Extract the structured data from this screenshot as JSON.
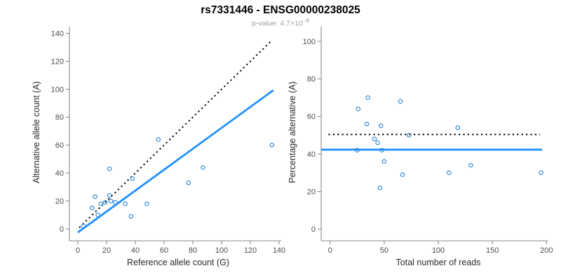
{
  "title": "rs7331446 - ENSG00000238025",
  "subtitle": {
    "text": "p-value: 4.7×10",
    "exponent": "−8"
  },
  "colors": {
    "line_blue": "#1E90FF",
    "point_blue": "#2F89D8",
    "reference_black": "#0a0a0a",
    "axis": "#8a8a8a",
    "tick_text": "#4d4d4d",
    "axis_label_text": "#2b2b2b",
    "title_text": "#000000",
    "subtitle_text": "#9e9e9e"
  },
  "chart_data": [
    {
      "type": "scatter",
      "name": "ref-vs-alt-count",
      "xlabel": "Reference allele count (G)",
      "ylabel": "Alternative allele count (A)",
      "xlim": [
        0,
        140
      ],
      "ylim": [
        0,
        140
      ],
      "xticks": [
        0,
        20,
        40,
        60,
        80,
        100,
        120,
        140
      ],
      "yticks": [
        0,
        20,
        40,
        60,
        80,
        100,
        120,
        140
      ],
      "grid": false,
      "legend": "none",
      "marker": "open-circle",
      "points": [
        [
          4,
          2
        ],
        [
          10,
          15
        ],
        [
          12,
          23
        ],
        [
          14,
          10
        ],
        [
          16,
          18
        ],
        [
          19,
          19
        ],
        [
          22,
          24
        ],
        [
          22,
          43
        ],
        [
          23,
          20
        ],
        [
          26,
          19
        ],
        [
          33,
          18
        ],
        [
          37,
          9
        ],
        [
          38,
          36
        ],
        [
          48,
          18
        ],
        [
          56,
          64
        ],
        [
          77,
          33
        ],
        [
          87,
          44
        ],
        [
          135,
          60
        ]
      ],
      "lines": [
        {
          "name": "identity-line",
          "style": "dashed",
          "color": "#0a0a0a",
          "from": [
            1,
            1
          ],
          "to": [
            135,
            135
          ]
        },
        {
          "name": "fit-line",
          "style": "solid",
          "color": "#1E90FF",
          "from": [
            0,
            -2.5
          ],
          "to": [
            136,
            99.3
          ]
        }
      ]
    },
    {
      "type": "scatter",
      "name": "reads-vs-percentage",
      "xlabel": "Total number of reads",
      "ylabel": "Percentage alternative (A)",
      "xlim": [
        0,
        200
      ],
      "ylim": [
        0,
        100
      ],
      "xticks": [
        0,
        50,
        100,
        150,
        200
      ],
      "yticks": [
        0,
        20,
        40,
        60,
        80,
        100
      ],
      "grid": false,
      "legend": "none",
      "marker": "open-circle",
      "points": [
        [
          25,
          42
        ],
        [
          26,
          64
        ],
        [
          34,
          56
        ],
        [
          35,
          70
        ],
        [
          41,
          48
        ],
        [
          44,
          46
        ],
        [
          46,
          22
        ],
        [
          47,
          55
        ],
        [
          48,
          42
        ],
        [
          50,
          36
        ],
        [
          65,
          68
        ],
        [
          67,
          29
        ],
        [
          73,
          50
        ],
        [
          110,
          30
        ],
        [
          118,
          54
        ],
        [
          130,
          34
        ],
        [
          195,
          30
        ]
      ],
      "lines": [
        {
          "name": "fifty-percent-line",
          "style": "dashed",
          "color": "#0a0a0a",
          "from": [
            -1.5,
            50.4
          ],
          "to": [
            194,
            50.4
          ]
        },
        {
          "name": "mean-percentage-line",
          "style": "solid",
          "color": "#1E90FF",
          "from": [
            -8,
            42.3
          ],
          "to": [
            196,
            42.3
          ]
        }
      ]
    }
  ]
}
